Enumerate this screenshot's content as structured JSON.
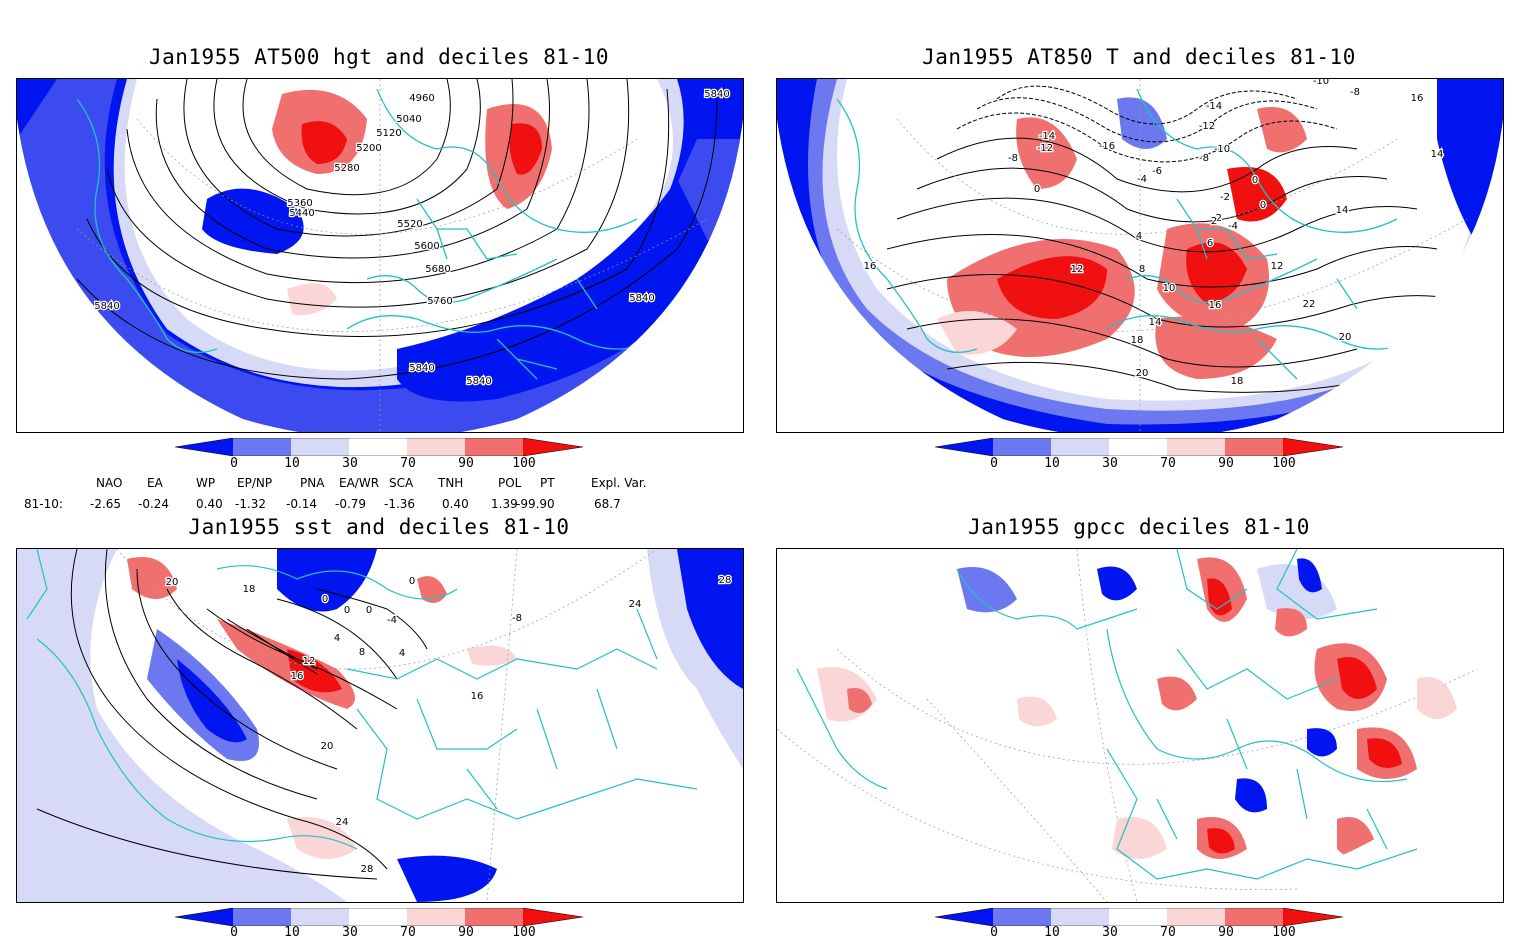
{
  "colors": {
    "dark_blue": "#0015f0",
    "mid_blue": "#6b78f0",
    "light_blue": "#d6daf7",
    "light_red": "#fbd6d6",
    "mid_red": "#f07070",
    "dark_red": "#f01010",
    "coast": "#22c2c2",
    "contour": "#000000"
  },
  "colorbar": {
    "ticks": [
      "0",
      "10",
      "30",
      "70",
      "90",
      "100"
    ]
  },
  "panels": [
    {
      "id": "hgt500",
      "title": "Jan1955 AT500 hgt and deciles 81-10",
      "contour_labels": [
        "4960",
        "5040",
        "5120",
        "5200",
        "5280",
        "5360",
        "5440",
        "5520",
        "5600",
        "5680",
        "5760",
        "5840",
        "5840",
        "5840",
        "5840",
        "5840"
      ]
    },
    {
      "id": "t850",
      "title": "Jan1955 AT850 T and deciles 81-10",
      "contour_labels": [
        "-10",
        "-8",
        "-14",
        "-12",
        "-16",
        "-14",
        "-12",
        "-10",
        "-8",
        "-6",
        "-4",
        "-2",
        "0",
        "2",
        "4",
        "6",
        "8",
        "10",
        "12",
        "12",
        "14",
        "14",
        "16",
        "16",
        "16",
        "18",
        "18",
        "20",
        "20",
        "22",
        "14",
        "0",
        "0",
        "-4",
        "-2",
        "-8"
      ]
    },
    {
      "id": "sst",
      "title": "Jan1955 sst and deciles 81-10",
      "contour_labels": [
        "28",
        "-8",
        "20",
        "0",
        "0",
        "0",
        "0",
        "4",
        "8",
        "12",
        "16",
        "20",
        "24",
        "28",
        "24",
        "16",
        "18",
        "4",
        "-4"
      ]
    },
    {
      "id": "gpcc",
      "title": "Jan1955 gpcc deciles 81-10",
      "contour_labels": []
    }
  ],
  "indices": {
    "row_label": "81-10:",
    "headers": [
      "NAO",
      "EA",
      "WP",
      "EP/NP",
      "PNA",
      "EA/WR",
      "SCA",
      "TNH",
      "POL",
      "PT",
      "Expl. Var."
    ],
    "values": [
      "-2.65",
      "-0.24",
      "0.40",
      "-1.32",
      "-0.14",
      "-0.79",
      "-1.36",
      "0.40",
      "1.39",
      "-99.90",
      "68.7"
    ]
  }
}
